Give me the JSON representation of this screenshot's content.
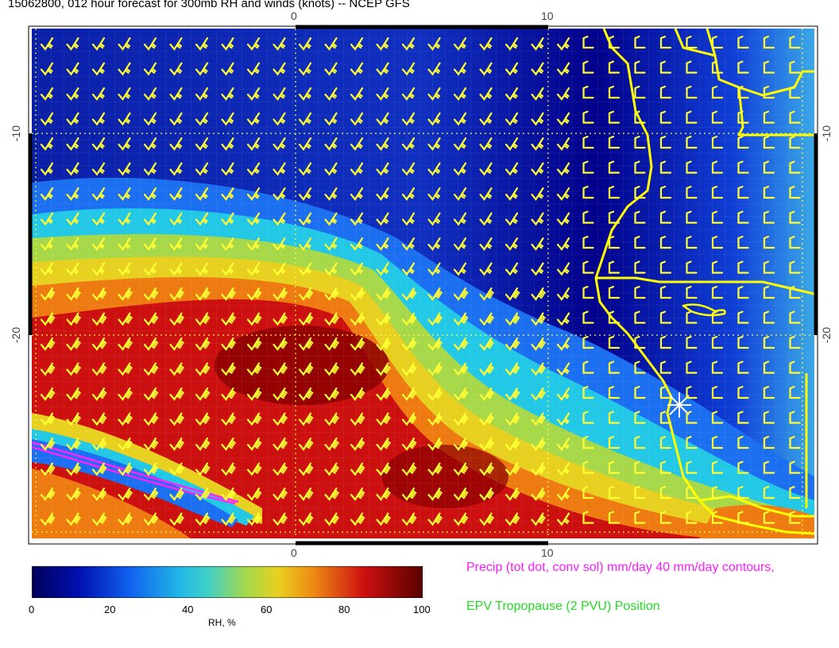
{
  "title": "15062800, 012 hour forecast for 300mb RH and winds (knots) -- NCEP GFS",
  "map": {
    "top_ticks": [
      "0",
      "10"
    ],
    "bottom_ticks": [
      "0",
      "10"
    ],
    "left_ticks": [
      "-10",
      "-20"
    ],
    "right_ticks": [
      "-10",
      "-20"
    ],
    "colors": {
      "barb": "#ffff33",
      "coast": "#ffff00",
      "tropopause": "#ff22ff",
      "marker": "#ffffff"
    },
    "rh_field_palette": [
      "#00008a",
      "#0022cc",
      "#1b6ff0",
      "#22c8e6",
      "#a6d84a",
      "#e8d020",
      "#ee7a12",
      "#cc1010",
      "#7a0000"
    ]
  },
  "colorbar": {
    "ticks": [
      "0",
      "20",
      "40",
      "60",
      "80",
      "100"
    ],
    "title": "RH, %",
    "range": [
      0,
      100
    ]
  },
  "legend": {
    "precip": "Precip (tot dot, conv sol) mm/day 40 mm/day contours,",
    "epv": "EPV Tropopause (2 PVU) Position"
  }
}
